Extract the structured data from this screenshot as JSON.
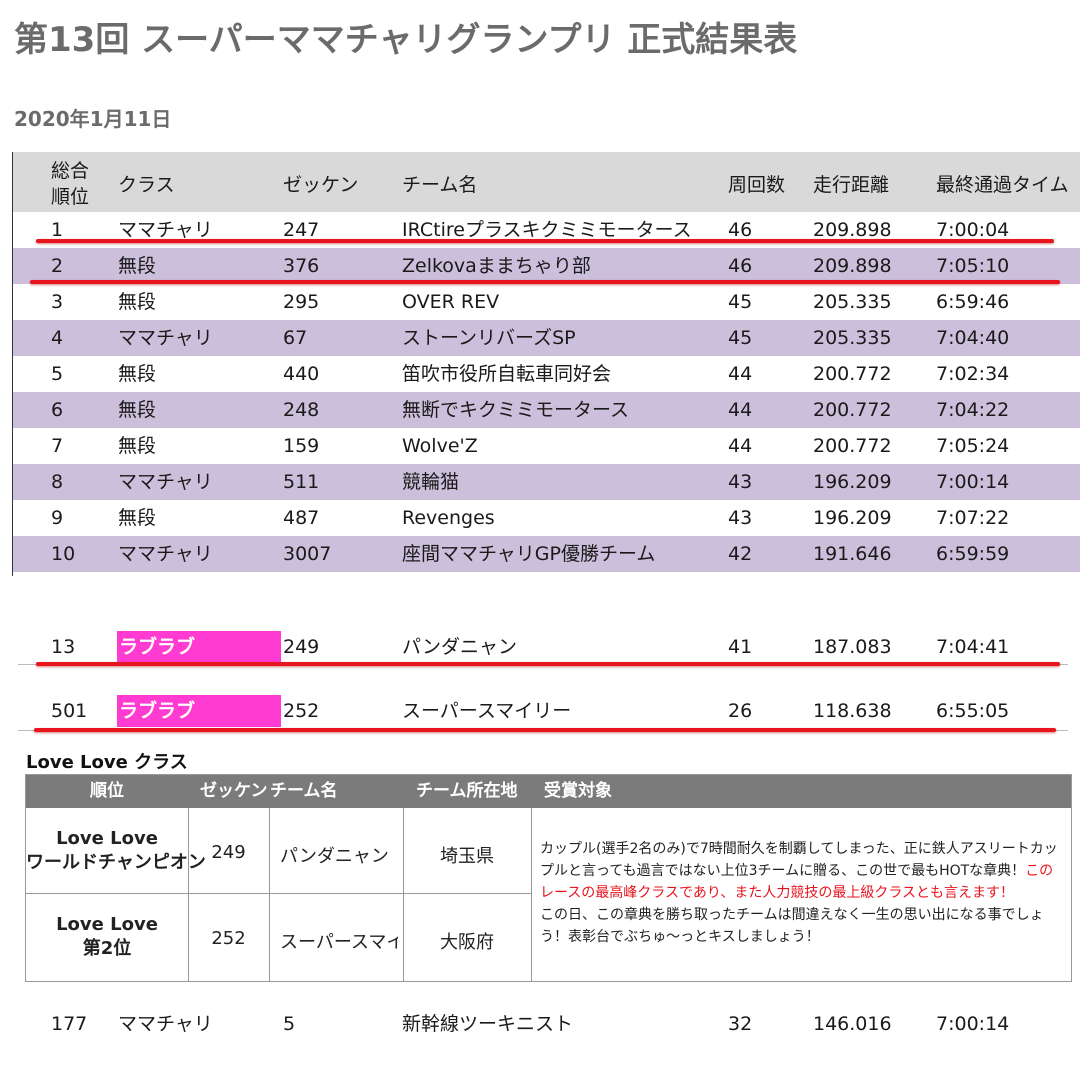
{
  "title": "第13回 スーパーママチャリグランプリ 正式結果表",
  "date": "2020年1月11日",
  "results": {
    "headers": {
      "rank_line1": "総合",
      "rank_line2": "順位",
      "class": "クラス",
      "bib": "ゼッケン",
      "team": "チーム名",
      "laps": "周回数",
      "distance": "走行距離",
      "time": "最終通過タイム"
    },
    "rows": [
      {
        "rank": "1",
        "class": "ママチャリ",
        "bib": "247",
        "team": "IRCtireプラスキクミミモータース",
        "laps": "46",
        "distance": "209.898",
        "time": "7:00:04"
      },
      {
        "rank": "2",
        "class": "無段",
        "bib": "376",
        "team": "Zelkovaままちゃり部",
        "laps": "46",
        "distance": "209.898",
        "time": "7:05:10"
      },
      {
        "rank": "3",
        "class": "無段",
        "bib": "295",
        "team": "OVER REV",
        "laps": "45",
        "distance": "205.335",
        "time": "6:59:46"
      },
      {
        "rank": "4",
        "class": "ママチャリ",
        "bib": "67",
        "team": "ストーンリバーズSP",
        "laps": "45",
        "distance": "205.335",
        "time": "7:04:40"
      },
      {
        "rank": "5",
        "class": "無段",
        "bib": "440",
        "team": "笛吹市役所自転車同好会",
        "laps": "44",
        "distance": "200.772",
        "time": "7:02:34"
      },
      {
        "rank": "6",
        "class": "無段",
        "bib": "248",
        "team": "無断でキクミミモータース",
        "laps": "44",
        "distance": "200.772",
        "time": "7:04:22"
      },
      {
        "rank": "7",
        "class": "無段",
        "bib": "159",
        "team": "Wolve'Z",
        "laps": "44",
        "distance": "200.772",
        "time": "7:05:24"
      },
      {
        "rank": "8",
        "class": "ママチャリ",
        "bib": "511",
        "team": "競輪猫",
        "laps": "43",
        "distance": "196.209",
        "time": "7:00:14"
      },
      {
        "rank": "9",
        "class": "無段",
        "bib": "487",
        "team": "Revenges",
        "laps": "43",
        "distance": "196.209",
        "time": "7:07:22"
      },
      {
        "rank": "10",
        "class": "ママチャリ",
        "bib": "3007",
        "team": "座間ママチャリGP優勝チーム",
        "laps": "42",
        "distance": "191.646",
        "time": "6:59:59"
      }
    ],
    "love_rows": [
      {
        "rank": "13",
        "class": "ラブラブ",
        "bib": "249",
        "team": "パンダニャン",
        "laps": "41",
        "distance": "187.083",
        "time": "7:04:41"
      },
      {
        "rank": "501",
        "class": "ラブラブ",
        "bib": "252",
        "team": "スーパースマイリー",
        "laps": "26",
        "distance": "118.638",
        "time": "6:55:05"
      }
    ],
    "extra_row": {
      "rank": "177",
      "class": "ママチャリ",
      "bib": "5",
      "team": "新幹線ツーキニスト",
      "laps": "32",
      "distance": "146.016",
      "time": "7:00:14"
    }
  },
  "love_class": {
    "title": "Love Love クラス",
    "headers": {
      "rank": "順位",
      "bib": "ゼッケン",
      "team": "チーム名",
      "location": "チーム所在地",
      "award": "受賞対象"
    },
    "rows": [
      {
        "rank_line1": "Love Love",
        "rank_line2": "ワールドチャンピオン",
        "bib": "249",
        "team": "パンダニャン",
        "location": "埼玉県"
      },
      {
        "rank_line1": "Love Love",
        "rank_line2": "第2位",
        "bib": "252",
        "team": "スーパースマイリ-",
        "location": "大阪府"
      }
    ],
    "award_text_1": "カップル(選手2名のみ)で7時間耐久を制覇してしまった、正に鉄人アスリートカップルと言っても過言ではない上位3チームに贈る、この世で最もHOTな章典！",
    "award_text_red": "このレースの最高峰クラスであり、また人力競技の最上級クラスとも言えます！",
    "award_text_2": "この日、この章典を勝ち取ったチームは間違えなく一生の思い出になる事でしょう！表彰台でぶちゅ～っとキスしましょう！"
  },
  "colors": {
    "alt_row": "#cbbfdb",
    "header_bg": "#d9d9d9",
    "love_badge": "#ff3bd1",
    "highlight_line": "#e8141e",
    "table_head": "#7b7b7b"
  }
}
